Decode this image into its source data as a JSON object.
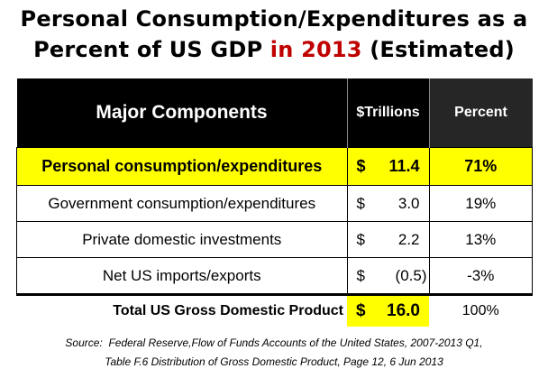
{
  "title": {
    "line1": "Personal Consumption/Expenditures as a",
    "line2_pre": "Percent of US GDP ",
    "line2_highlight": "in 2013",
    "line2_post": " (Estimated)",
    "highlight_color": "#c00000"
  },
  "chart_data": {
    "type": "table",
    "columns": [
      "Major Components",
      "$Trillions",
      "Percent"
    ],
    "rows": [
      {
        "component": "Personal consumption/expenditures",
        "currency": "$",
        "trillions": "11.4",
        "percent": "71%",
        "highlighted": true
      },
      {
        "component": "Government consumption/expenditures",
        "currency": "$",
        "trillions": "3.0",
        "percent": "19%"
      },
      {
        "component": "Private domestic investments",
        "currency": "$",
        "trillions": "2.2",
        "percent": "13%"
      },
      {
        "component": "Net US imports/exports",
        "currency": "$",
        "trillions": "(0.5)",
        "percent": "-3%"
      }
    ],
    "total": {
      "component": "Total US Gross Domestic Product",
      "currency": "$",
      "trillions": "16.0",
      "percent": "100%"
    },
    "highlight_color": "#ffff00"
  },
  "source": {
    "line1": "Source:  Federal Reserve,Flow of Funds Accounts of the United States, 2007-2013 Q1,",
    "line2": "Table F.6 Distribution of Gross Domestic Product, Page 12, 6 Jun 2013"
  }
}
